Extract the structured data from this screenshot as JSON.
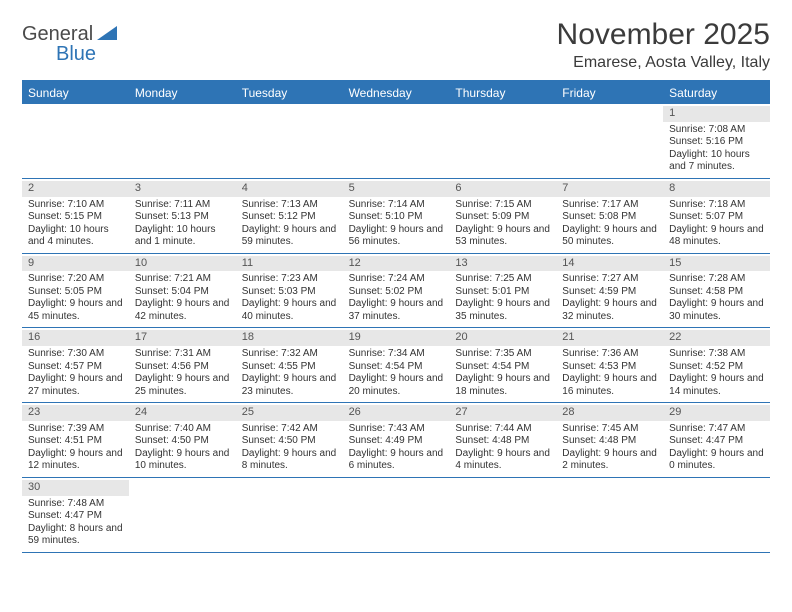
{
  "logo": {
    "textTop": "General",
    "textBottom": "Blue"
  },
  "title": "November 2025",
  "subtitle": "Emarese, Aosta Valley, Italy",
  "colors": {
    "headerBar": "#2e74b5",
    "dayNumBg": "#e7e7e7",
    "text": "#333333"
  },
  "dayNames": [
    "Sunday",
    "Monday",
    "Tuesday",
    "Wednesday",
    "Thursday",
    "Friday",
    "Saturday"
  ],
  "weeks": [
    [
      null,
      null,
      null,
      null,
      null,
      null,
      {
        "n": "1",
        "sr": "Sunrise: 7:08 AM",
        "ss": "Sunset: 5:16 PM",
        "dl": "Daylight: 10 hours and 7 minutes."
      }
    ],
    [
      {
        "n": "2",
        "sr": "Sunrise: 7:10 AM",
        "ss": "Sunset: 5:15 PM",
        "dl": "Daylight: 10 hours and 4 minutes."
      },
      {
        "n": "3",
        "sr": "Sunrise: 7:11 AM",
        "ss": "Sunset: 5:13 PM",
        "dl": "Daylight: 10 hours and 1 minute."
      },
      {
        "n": "4",
        "sr": "Sunrise: 7:13 AM",
        "ss": "Sunset: 5:12 PM",
        "dl": "Daylight: 9 hours and 59 minutes."
      },
      {
        "n": "5",
        "sr": "Sunrise: 7:14 AM",
        "ss": "Sunset: 5:10 PM",
        "dl": "Daylight: 9 hours and 56 minutes."
      },
      {
        "n": "6",
        "sr": "Sunrise: 7:15 AM",
        "ss": "Sunset: 5:09 PM",
        "dl": "Daylight: 9 hours and 53 minutes."
      },
      {
        "n": "7",
        "sr": "Sunrise: 7:17 AM",
        "ss": "Sunset: 5:08 PM",
        "dl": "Daylight: 9 hours and 50 minutes."
      },
      {
        "n": "8",
        "sr": "Sunrise: 7:18 AM",
        "ss": "Sunset: 5:07 PM",
        "dl": "Daylight: 9 hours and 48 minutes."
      }
    ],
    [
      {
        "n": "9",
        "sr": "Sunrise: 7:20 AM",
        "ss": "Sunset: 5:05 PM",
        "dl": "Daylight: 9 hours and 45 minutes."
      },
      {
        "n": "10",
        "sr": "Sunrise: 7:21 AM",
        "ss": "Sunset: 5:04 PM",
        "dl": "Daylight: 9 hours and 42 minutes."
      },
      {
        "n": "11",
        "sr": "Sunrise: 7:23 AM",
        "ss": "Sunset: 5:03 PM",
        "dl": "Daylight: 9 hours and 40 minutes."
      },
      {
        "n": "12",
        "sr": "Sunrise: 7:24 AM",
        "ss": "Sunset: 5:02 PM",
        "dl": "Daylight: 9 hours and 37 minutes."
      },
      {
        "n": "13",
        "sr": "Sunrise: 7:25 AM",
        "ss": "Sunset: 5:01 PM",
        "dl": "Daylight: 9 hours and 35 minutes."
      },
      {
        "n": "14",
        "sr": "Sunrise: 7:27 AM",
        "ss": "Sunset: 4:59 PM",
        "dl": "Daylight: 9 hours and 32 minutes."
      },
      {
        "n": "15",
        "sr": "Sunrise: 7:28 AM",
        "ss": "Sunset: 4:58 PM",
        "dl": "Daylight: 9 hours and 30 minutes."
      }
    ],
    [
      {
        "n": "16",
        "sr": "Sunrise: 7:30 AM",
        "ss": "Sunset: 4:57 PM",
        "dl": "Daylight: 9 hours and 27 minutes."
      },
      {
        "n": "17",
        "sr": "Sunrise: 7:31 AM",
        "ss": "Sunset: 4:56 PM",
        "dl": "Daylight: 9 hours and 25 minutes."
      },
      {
        "n": "18",
        "sr": "Sunrise: 7:32 AM",
        "ss": "Sunset: 4:55 PM",
        "dl": "Daylight: 9 hours and 23 minutes."
      },
      {
        "n": "19",
        "sr": "Sunrise: 7:34 AM",
        "ss": "Sunset: 4:54 PM",
        "dl": "Daylight: 9 hours and 20 minutes."
      },
      {
        "n": "20",
        "sr": "Sunrise: 7:35 AM",
        "ss": "Sunset: 4:54 PM",
        "dl": "Daylight: 9 hours and 18 minutes."
      },
      {
        "n": "21",
        "sr": "Sunrise: 7:36 AM",
        "ss": "Sunset: 4:53 PM",
        "dl": "Daylight: 9 hours and 16 minutes."
      },
      {
        "n": "22",
        "sr": "Sunrise: 7:38 AM",
        "ss": "Sunset: 4:52 PM",
        "dl": "Daylight: 9 hours and 14 minutes."
      }
    ],
    [
      {
        "n": "23",
        "sr": "Sunrise: 7:39 AM",
        "ss": "Sunset: 4:51 PM",
        "dl": "Daylight: 9 hours and 12 minutes."
      },
      {
        "n": "24",
        "sr": "Sunrise: 7:40 AM",
        "ss": "Sunset: 4:50 PM",
        "dl": "Daylight: 9 hours and 10 minutes."
      },
      {
        "n": "25",
        "sr": "Sunrise: 7:42 AM",
        "ss": "Sunset: 4:50 PM",
        "dl": "Daylight: 9 hours and 8 minutes."
      },
      {
        "n": "26",
        "sr": "Sunrise: 7:43 AM",
        "ss": "Sunset: 4:49 PM",
        "dl": "Daylight: 9 hours and 6 minutes."
      },
      {
        "n": "27",
        "sr": "Sunrise: 7:44 AM",
        "ss": "Sunset: 4:48 PM",
        "dl": "Daylight: 9 hours and 4 minutes."
      },
      {
        "n": "28",
        "sr": "Sunrise: 7:45 AM",
        "ss": "Sunset: 4:48 PM",
        "dl": "Daylight: 9 hours and 2 minutes."
      },
      {
        "n": "29",
        "sr": "Sunrise: 7:47 AM",
        "ss": "Sunset: 4:47 PM",
        "dl": "Daylight: 9 hours and 0 minutes."
      }
    ],
    [
      {
        "n": "30",
        "sr": "Sunrise: 7:48 AM",
        "ss": "Sunset: 4:47 PM",
        "dl": "Daylight: 8 hours and 59 minutes."
      },
      null,
      null,
      null,
      null,
      null,
      null
    ]
  ]
}
